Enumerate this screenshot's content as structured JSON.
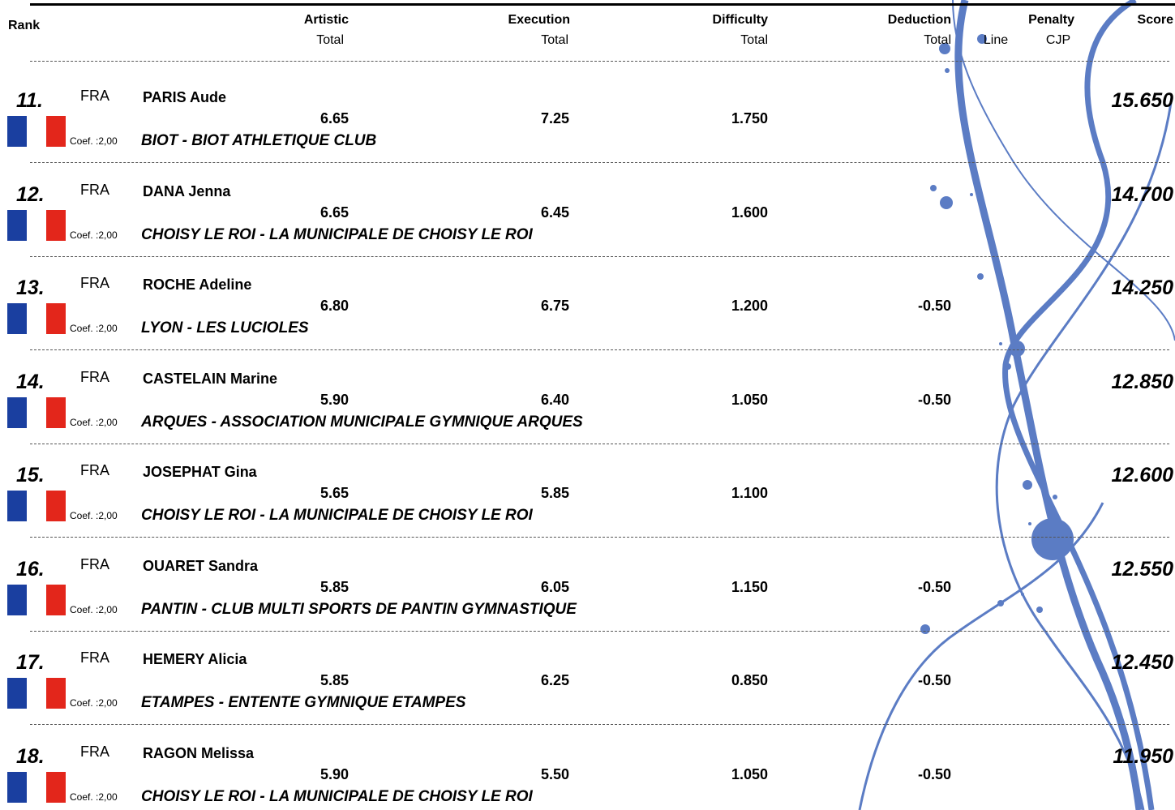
{
  "header": {
    "rank": "Rank",
    "artistic": {
      "title": "Artistic",
      "sub": "Total"
    },
    "execution": {
      "title": "Execution",
      "sub": "Total"
    },
    "difficulty": {
      "title": "Difficulty",
      "sub": "Total"
    },
    "deduction": {
      "title": "Deduction",
      "sub": "Total"
    },
    "line": "Line",
    "penalty": {
      "title": "Penalty",
      "sub": "CJP"
    },
    "score": "Score"
  },
  "rows": [
    {
      "rank": "11.",
      "nation": "FRA",
      "name": "PARIS Aude",
      "coef": "Coef. :2,00",
      "club": "BIOT - BIOT ATHLETIQUE CLUB",
      "artistic": "6.65",
      "execution": "7.25",
      "difficulty": "1.750",
      "score": "15.650"
    },
    {
      "rank": "12.",
      "nation": "FRA",
      "name": "DANA Jenna",
      "coef": "Coef. :2,00",
      "club": "CHOISY LE ROI - LA MUNICIPALE DE CHOISY LE ROI",
      "artistic": "6.65",
      "execution": "6.45",
      "difficulty": "1.600",
      "score": "14.700"
    },
    {
      "rank": "13.",
      "nation": "FRA",
      "name": "ROCHE Adeline",
      "coef": "Coef. :2,00",
      "club": "LYON - LES LUCIOLES",
      "artistic": "6.80",
      "execution": "6.75",
      "difficulty": "1.200",
      "deduction": "-0.50",
      "score": "14.250"
    },
    {
      "rank": "14.",
      "nation": "FRA",
      "name": "CASTELAIN Marine",
      "coef": "Coef. :2,00",
      "club": "ARQUES - ASSOCIATION MUNICIPALE GYMNIQUE ARQUES",
      "artistic": "5.90",
      "execution": "6.40",
      "difficulty": "1.050",
      "deduction": "-0.50",
      "score": "12.850"
    },
    {
      "rank": "15.",
      "nation": "FRA",
      "name": "JOSEPHAT Gina",
      "coef": "Coef. :2,00",
      "club": "CHOISY LE ROI - LA MUNICIPALE DE CHOISY LE ROI",
      "artistic": "5.65",
      "execution": "5.85",
      "difficulty": "1.100",
      "score": "12.600"
    },
    {
      "rank": "16.",
      "nation": "FRA",
      "name": "OUARET Sandra",
      "coef": "Coef. :2,00",
      "club": "PANTIN - CLUB MULTI SPORTS DE PANTIN GYMNASTIQUE",
      "artistic": "5.85",
      "execution": "6.05",
      "difficulty": "1.150",
      "deduction": "-0.50",
      "score": "12.550"
    },
    {
      "rank": "17.",
      "nation": "FRA",
      "name": "HEMERY Alicia",
      "coef": "Coef. :2,00",
      "club": "ETAMPES - ENTENTE GYMNIQUE ETAMPES",
      "artistic": "5.85",
      "execution": "6.25",
      "difficulty": "0.850",
      "deduction": "-0.50",
      "score": "12.450"
    },
    {
      "rank": "18.",
      "nation": "FRA",
      "name": "RAGON Melissa",
      "coef": "Coef. :2,00",
      "club": "CHOISY LE ROI - LA MUNICIPALE DE CHOISY LE ROI",
      "artistic": "5.90",
      "execution": "5.50",
      "difficulty": "1.050",
      "deduction": "-0.50",
      "score": "11.950"
    }
  ]
}
